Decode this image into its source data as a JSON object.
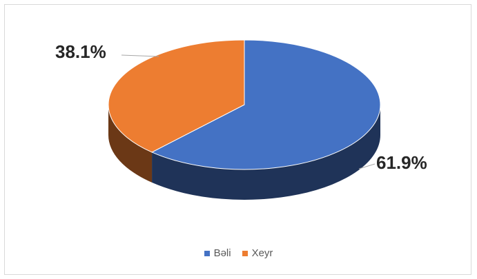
{
  "chart_data": {
    "type": "pie",
    "categories": [
      "Bəli",
      "Xeyr"
    ],
    "values": [
      61.9,
      38.1
    ],
    "data_labels": [
      "61.9%",
      "38.1%"
    ],
    "colors": [
      "#4472c4",
      "#ed7d31"
    ],
    "style": "3d",
    "legend_position": "bottom"
  }
}
